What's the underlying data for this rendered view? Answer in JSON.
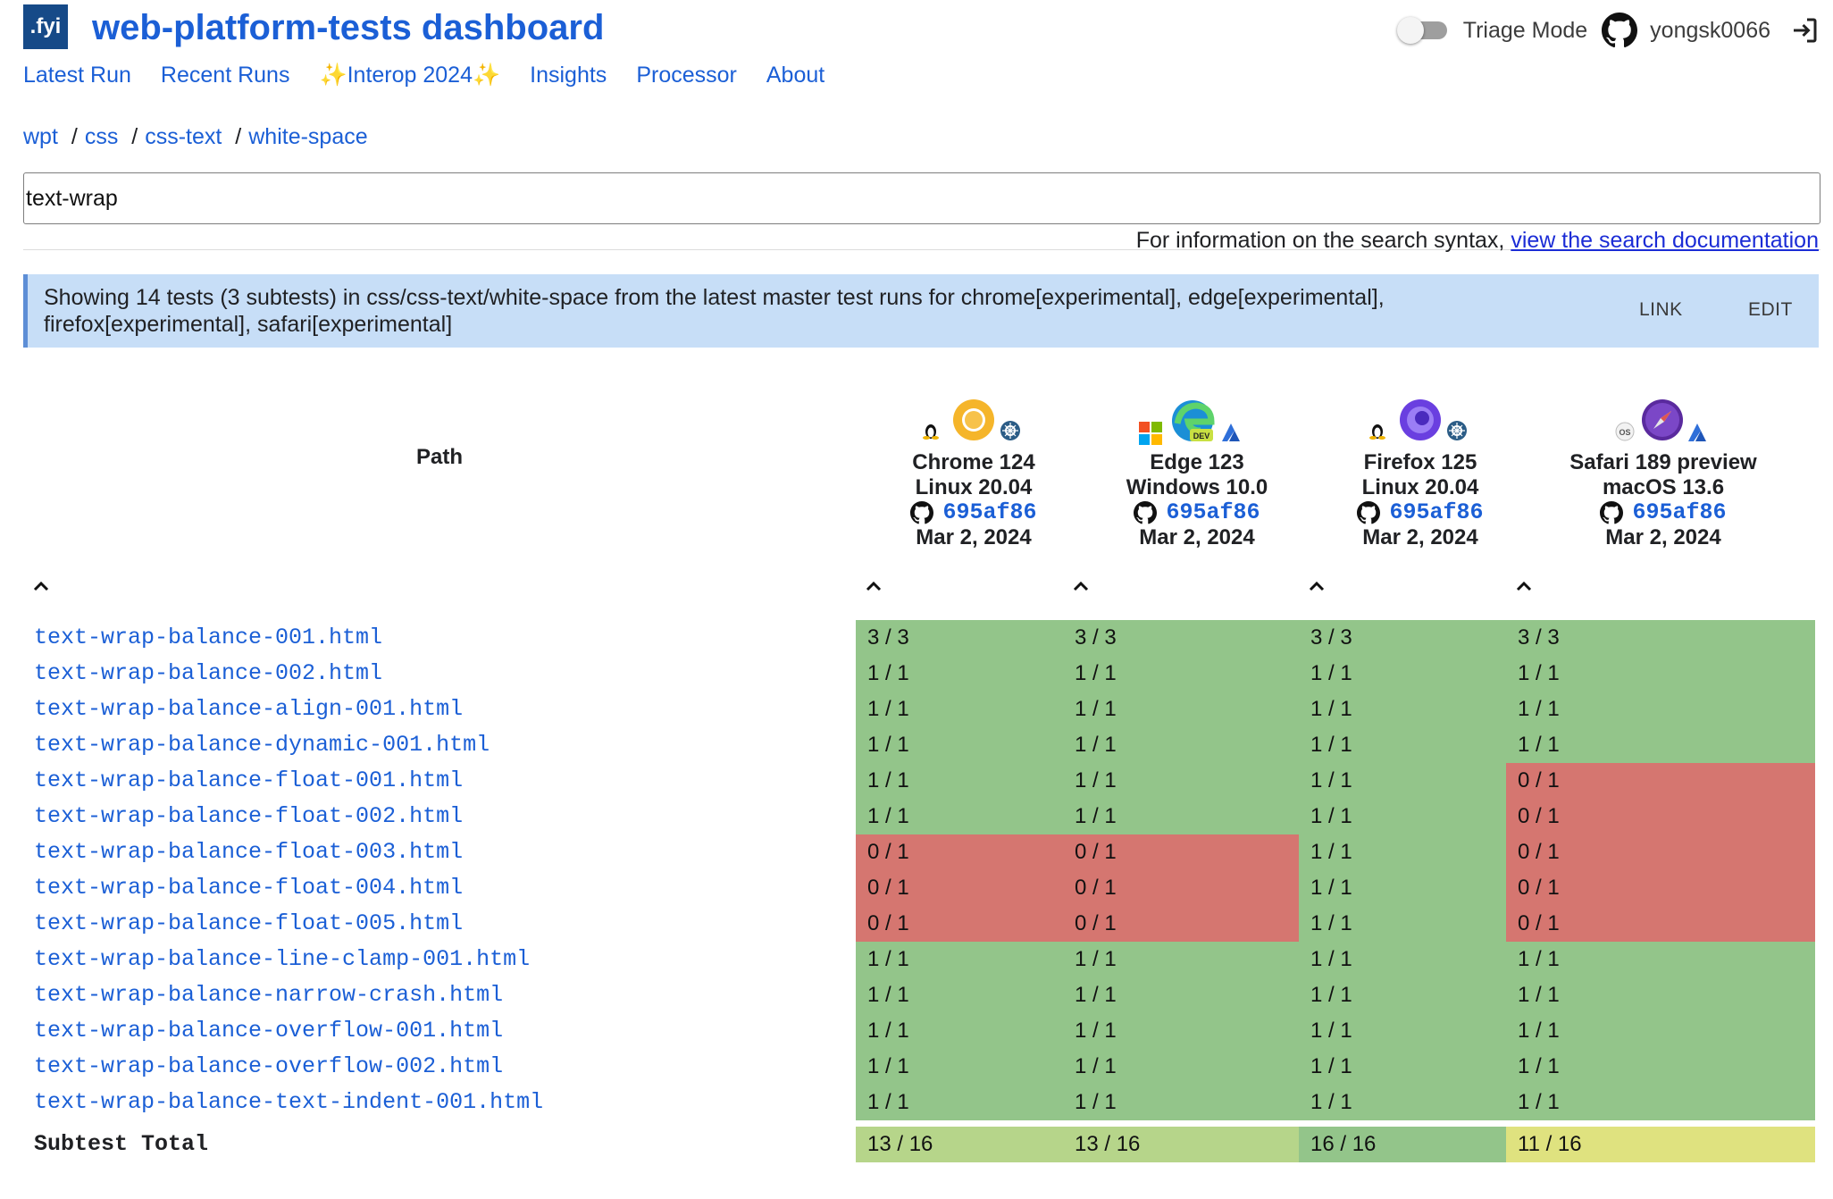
{
  "app": {
    "logo_text": ".fyi",
    "title": "web-platform-tests dashboard"
  },
  "nav": [
    {
      "label": "Latest Run"
    },
    {
      "label": "Recent Runs"
    },
    {
      "label": "Interop 2024",
      "sparkles": "✨"
    },
    {
      "label": "Insights"
    },
    {
      "label": "Processor"
    },
    {
      "label": "About"
    }
  ],
  "user": {
    "triage_label": "Triage Mode",
    "triage_on": false,
    "username": "yongsk0066"
  },
  "breadcrumb": [
    "wpt",
    "css",
    "css-text",
    "white-space"
  ],
  "search": {
    "value": "text-wrap",
    "help_prefix": "For information on the search syntax,",
    "help_link": "view the search documentation"
  },
  "banner": {
    "text": "Showing 14 tests (3 subtests) in css/css-text/white-space from the latest master test runs for chrome[experimental], edge[experimental], firefox[experimental], safari[experimental]",
    "link_label": "LINK",
    "edit_label": "EDIT"
  },
  "table": {
    "path_header": "Path",
    "browsers": [
      {
        "name": "Chrome 124",
        "os": "Linux 20.04",
        "rev": "695af86",
        "date": "Mar 2, 2024",
        "icon": "chrome-icon"
      },
      {
        "name": "Edge 123",
        "os": "Windows 10.0",
        "rev": "695af86",
        "date": "Mar 2, 2024",
        "icon": "edge-dev-icon"
      },
      {
        "name": "Firefox 125",
        "os": "Linux 20.04",
        "rev": "695af86",
        "date": "Mar 2, 2024",
        "icon": "firefox-icon"
      },
      {
        "name": "Safari 189 preview",
        "os": "macOS 13.6",
        "rev": "695af86",
        "date": "Mar 2, 2024",
        "icon": "safari-icon"
      }
    ],
    "rows": [
      {
        "path": "text-wrap-balance-001.html",
        "results": [
          "3 / 3",
          "3 / 3",
          "3 / 3",
          "3 / 3"
        ]
      },
      {
        "path": "text-wrap-balance-002.html",
        "results": [
          "1 / 1",
          "1 / 1",
          "1 / 1",
          "1 / 1"
        ]
      },
      {
        "path": "text-wrap-balance-align-001.html",
        "results": [
          "1 / 1",
          "1 / 1",
          "1 / 1",
          "1 / 1"
        ]
      },
      {
        "path": "text-wrap-balance-dynamic-001.html",
        "results": [
          "1 / 1",
          "1 / 1",
          "1 / 1",
          "1 / 1"
        ]
      },
      {
        "path": "text-wrap-balance-float-001.html",
        "results": [
          "1 / 1",
          "1 / 1",
          "1 / 1",
          "0 / 1"
        ]
      },
      {
        "path": "text-wrap-balance-float-002.html",
        "results": [
          "1 / 1",
          "1 / 1",
          "1 / 1",
          "0 / 1"
        ]
      },
      {
        "path": "text-wrap-balance-float-003.html",
        "results": [
          "0 / 1",
          "0 / 1",
          "1 / 1",
          "0 / 1"
        ]
      },
      {
        "path": "text-wrap-balance-float-004.html",
        "results": [
          "0 / 1",
          "0 / 1",
          "1 / 1",
          "0 / 1"
        ]
      },
      {
        "path": "text-wrap-balance-float-005.html",
        "results": [
          "0 / 1",
          "0 / 1",
          "1 / 1",
          "0 / 1"
        ]
      },
      {
        "path": "text-wrap-balance-line-clamp-001.html",
        "results": [
          "1 / 1",
          "1 / 1",
          "1 / 1",
          "1 / 1"
        ]
      },
      {
        "path": "text-wrap-balance-narrow-crash.html",
        "results": [
          "1 / 1",
          "1 / 1",
          "1 / 1",
          "1 / 1"
        ]
      },
      {
        "path": "text-wrap-balance-overflow-001.html",
        "results": [
          "1 / 1",
          "1 / 1",
          "1 / 1",
          "1 / 1"
        ]
      },
      {
        "path": "text-wrap-balance-overflow-002.html",
        "results": [
          "1 / 1",
          "1 / 1",
          "1 / 1",
          "1 / 1"
        ]
      },
      {
        "path": "text-wrap-balance-text-indent-001.html",
        "results": [
          "1 / 1",
          "1 / 1",
          "1 / 1",
          "1 / 1"
        ]
      }
    ],
    "total_label": "Subtest Total",
    "totals": [
      "13 / 16",
      "13 / 16",
      "16 / 16",
      "11 / 16"
    ],
    "colors": {
      "pass": "#93c58a",
      "fail": "#d57670",
      "total_13": "#b6d58a",
      "total_16": "#93c58a",
      "total_11": "#dfe27f"
    }
  }
}
